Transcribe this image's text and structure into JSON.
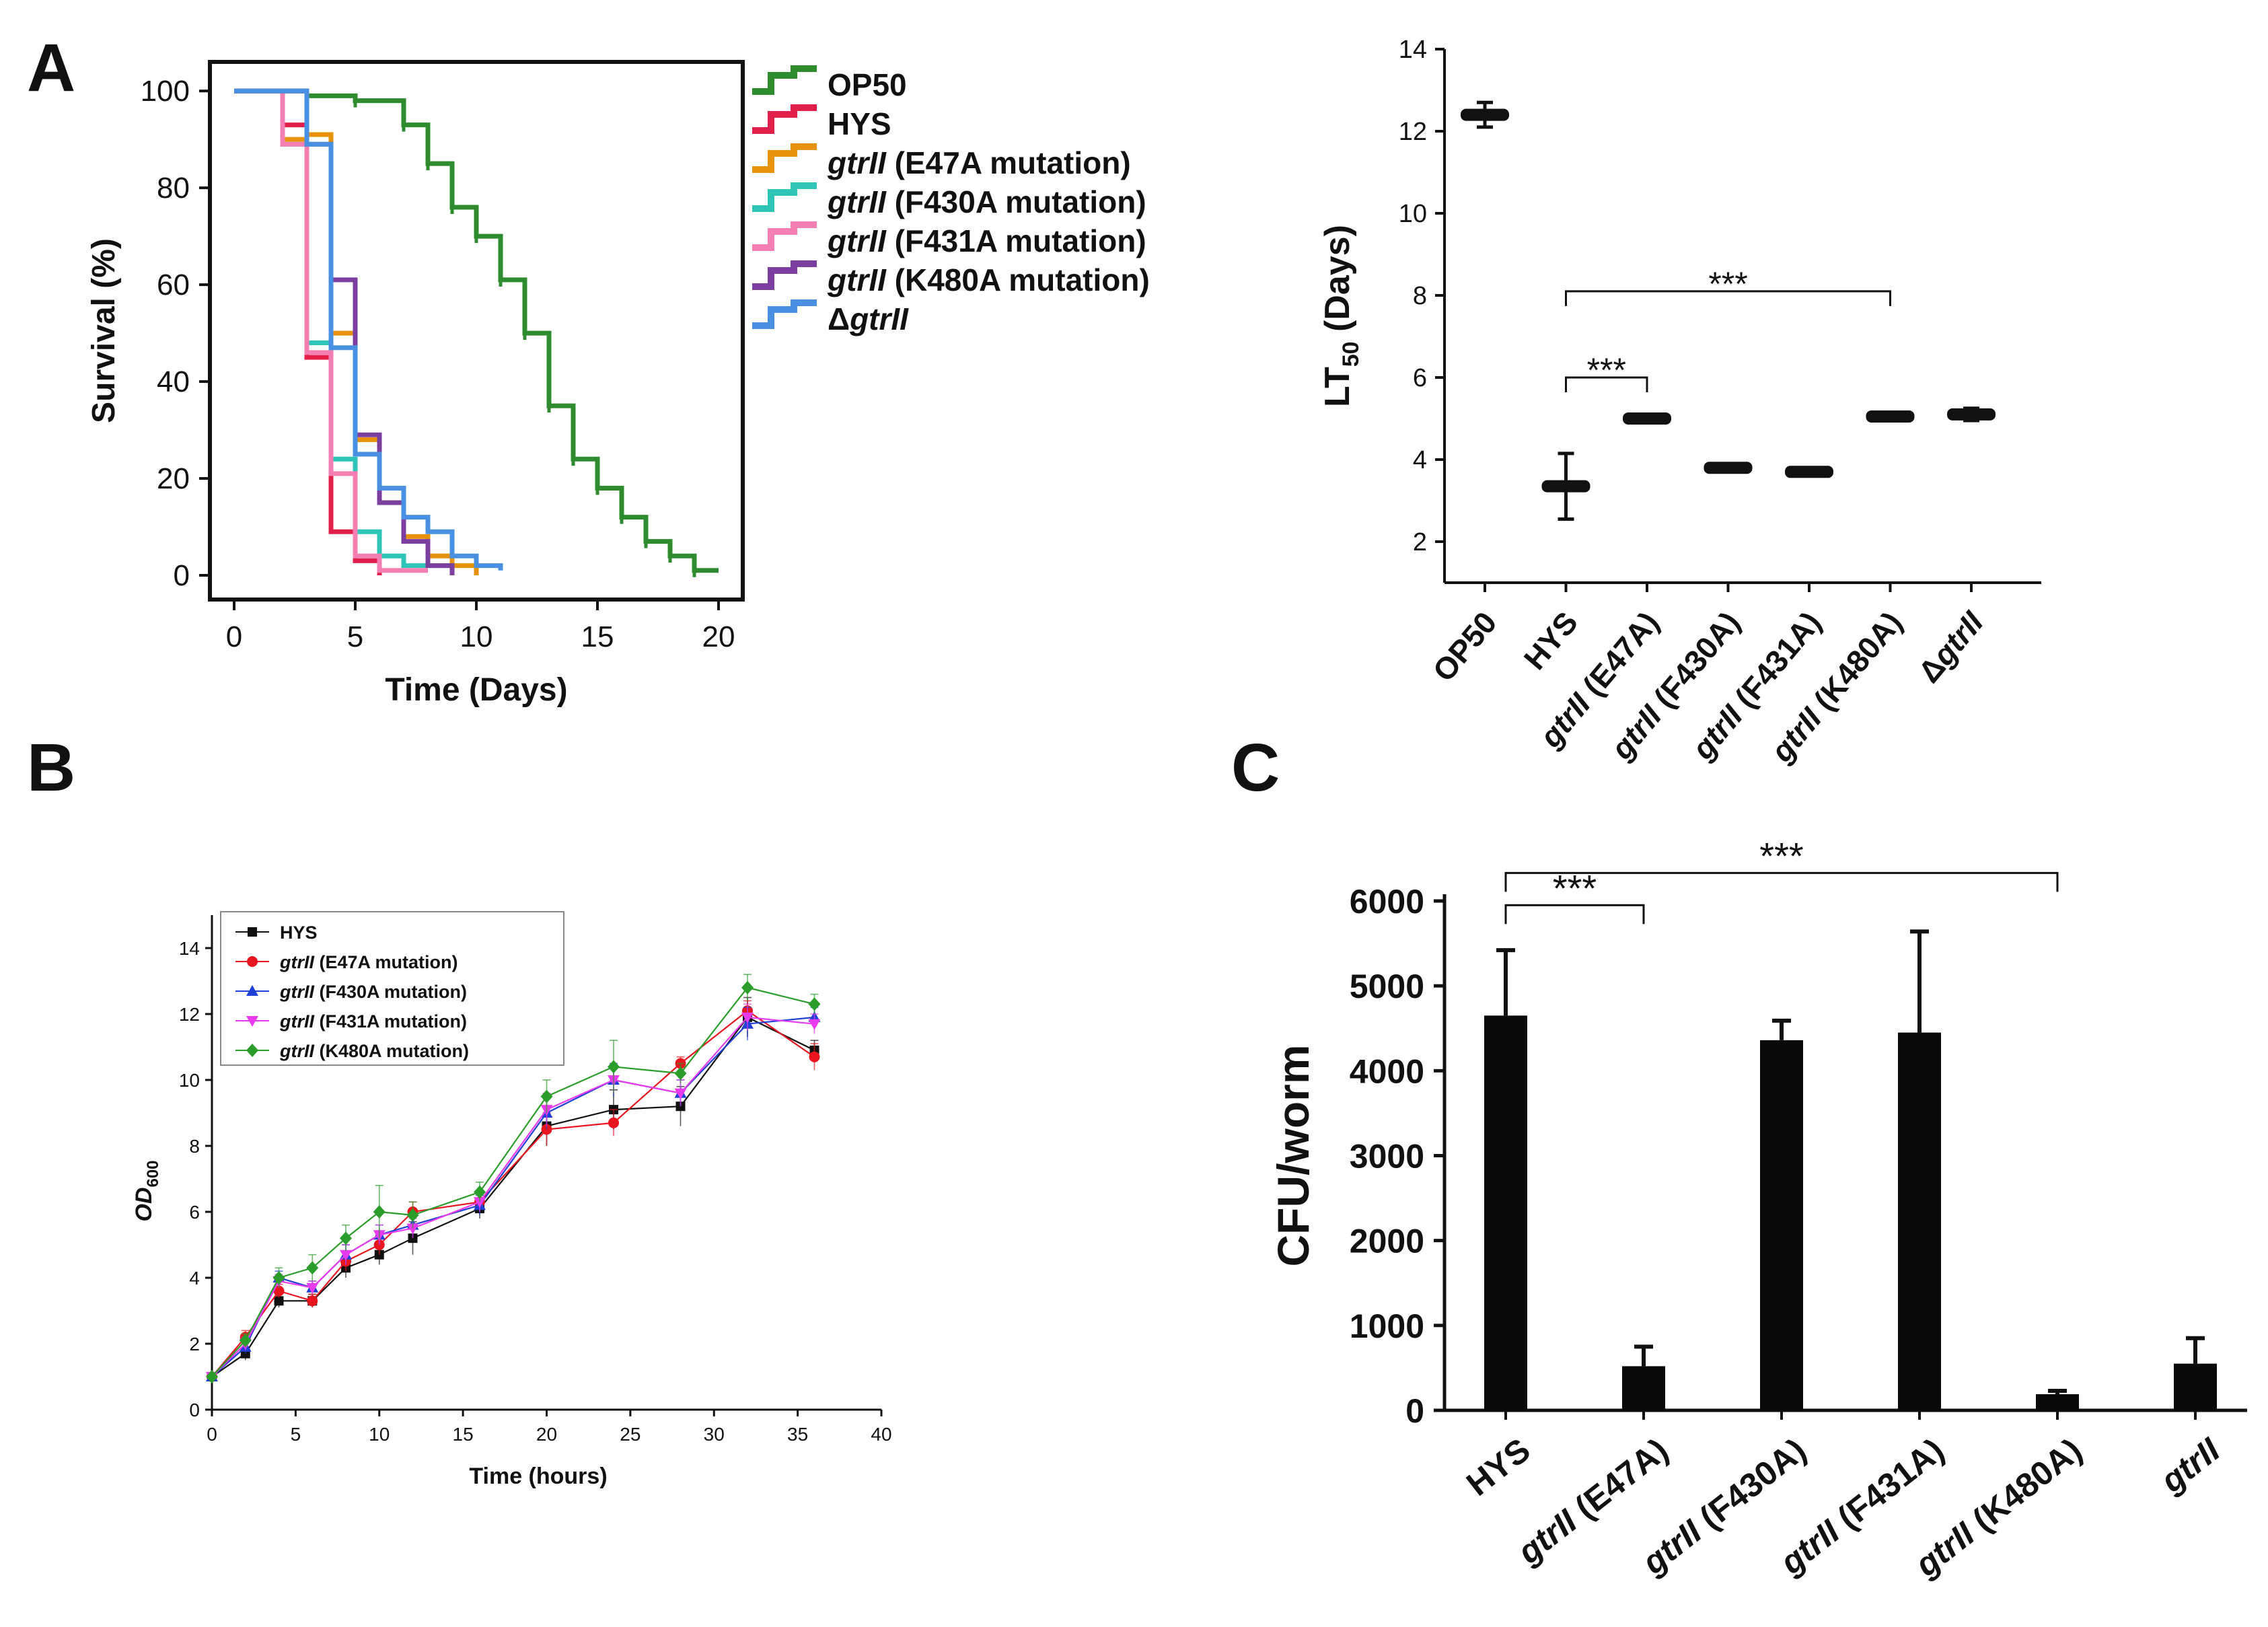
{
  "panels": {
    "a": "A",
    "b": "B",
    "c": "C"
  },
  "chart_data": [
    {
      "id": "survival",
      "type": "line",
      "xlabel": "Time (Days)",
      "ylabel": "Survival (%)",
      "xlim": [
        -1,
        21
      ],
      "ylim": [
        -5,
        106
      ],
      "xticks": [
        0,
        5,
        10,
        15,
        20
      ],
      "yticks": [
        0,
        20,
        40,
        60,
        80,
        100
      ],
      "series": [
        {
          "name": "OP50",
          "gene": "",
          "tail": "",
          "color": "#2e8b2e",
          "x": [
            0,
            3,
            5,
            7,
            8,
            9,
            10,
            11,
            12,
            13,
            14,
            15,
            16,
            17,
            18,
            19,
            20
          ],
          "y": [
            100,
            99,
            98,
            93,
            85,
            76,
            70,
            61,
            50,
            35,
            24,
            18,
            12,
            7,
            4,
            1,
            1
          ]
        },
        {
          "name": "HYS",
          "gene": "",
          "tail": "",
          "color": "#e0204a",
          "x": [
            0,
            2,
            3,
            4,
            5,
            6
          ],
          "y": [
            100,
            93,
            45,
            9,
            3,
            0
          ]
        },
        {
          "name": "",
          "gene": "gtrII",
          "tail": " (E47A mutation)",
          "color": "#e8920c",
          "x": [
            0,
            2,
            3,
            4,
            5,
            6,
            7,
            8,
            9,
            10
          ],
          "y": [
            100,
            90,
            91,
            50,
            28,
            15,
            8,
            4,
            2,
            0
          ]
        },
        {
          "name": "",
          "gene": "gtrII",
          "tail": " (F430A mutation)",
          "color": "#2ec4b6",
          "x": [
            0,
            2,
            3,
            4,
            5,
            6,
            7,
            8,
            9
          ],
          "y": [
            100,
            89,
            48,
            24,
            9,
            4,
            2,
            2,
            1
          ]
        },
        {
          "name": "",
          "gene": "gtrII",
          "tail": " (F431A mutation)",
          "color": "#f57fb2",
          "x": [
            0,
            2,
            3,
            4,
            5,
            6,
            7,
            8
          ],
          "y": [
            100,
            89,
            46,
            21,
            4,
            1,
            1,
            1
          ]
        },
        {
          "name": "",
          "gene": "gtrII",
          "tail": " (K480A mutation)",
          "color": "#7b3fa0",
          "x": [
            0,
            3,
            4,
            5,
            6,
            7,
            8,
            9
          ],
          "y": [
            100,
            89,
            61,
            29,
            15,
            7,
            2,
            0
          ]
        },
        {
          "name": "Δ",
          "gene": "gtrII",
          "tail": "",
          "color": "#4a90e2",
          "x": [
            0,
            3,
            4,
            5,
            6,
            7,
            8,
            9,
            10,
            11
          ],
          "y": [
            100,
            89,
            47,
            25,
            18,
            12,
            9,
            4,
            2,
            1
          ]
        }
      ]
    },
    {
      "id": "lt50",
      "type": "scatter",
      "ylabel_main": "LT",
      "ylabel_sub": "50",
      "ylabel_tail": " (Days)",
      "ylim": [
        1,
        14
      ],
      "yticks": [
        2,
        4,
        6,
        8,
        10,
        12,
        14
      ],
      "categories": [
        {
          "pre": "OP50",
          "gene": "",
          "tail": "",
          "value": 12.4,
          "err": 0.3
        },
        {
          "pre": "HYS",
          "gene": "",
          "tail": "",
          "value": 3.35,
          "err": 0.8
        },
        {
          "pre": "",
          "gene": "gtrII",
          "tail": " (E47A)",
          "value": 5.0,
          "err": 0.1
        },
        {
          "pre": "",
          "gene": "gtrII",
          "tail": " (F430A)",
          "value": 3.8,
          "err": 0.08
        },
        {
          "pre": "",
          "gene": "gtrII",
          "tail": " (F431A)",
          "value": 3.7,
          "err": 0.08
        },
        {
          "pre": "",
          "gene": "gtrII",
          "tail": " (K480A)",
          "value": 5.05,
          "err": 0.1
        },
        {
          "pre": "Δ",
          "gene": "gtrII",
          "tail": "",
          "value": 5.1,
          "err": 0.15
        }
      ],
      "annotations": [
        {
          "from": 1,
          "to": 2,
          "y": 6.0,
          "label": "***"
        },
        {
          "from": 1,
          "to": 5,
          "y": 8.1,
          "label": "***"
        }
      ]
    },
    {
      "id": "growth",
      "type": "line",
      "xlabel": "Time (hours)",
      "ylabel_main": "OD",
      "ylabel_sub": "600",
      "xlim": [
        0,
        40
      ],
      "ylim": [
        0,
        15
      ],
      "xticks": [
        0,
        5,
        10,
        15,
        20,
        25,
        30,
        35,
        40
      ],
      "yticks": [
        0,
        2,
        4,
        6,
        8,
        10,
        12,
        14
      ],
      "x": [
        0,
        2,
        4,
        6,
        8,
        10,
        12,
        16,
        20,
        24,
        28,
        32,
        36
      ],
      "series": [
        {
          "name": "HYS",
          "gene": "",
          "tail": "",
          "color": "#111111",
          "marker": "square",
          "y": [
            1.0,
            1.7,
            3.3,
            3.3,
            4.3,
            4.7,
            5.2,
            6.1,
            8.6,
            9.1,
            9.2,
            11.9,
            10.9
          ],
          "err": [
            0,
            0.2,
            0.2,
            0.2,
            0.3,
            0.3,
            0.5,
            0.3,
            0.6,
            0.6,
            0.6,
            0.6,
            0.3
          ]
        },
        {
          "name": "",
          "gene": "gtrII",
          "tail": " (E47A mutation)",
          "color": "#e8141e",
          "marker": "circle",
          "y": [
            1.0,
            2.2,
            3.6,
            3.3,
            4.5,
            5.0,
            6.0,
            6.3,
            8.5,
            8.7,
            10.5,
            12.1,
            10.7
          ],
          "err": [
            0,
            0.2,
            0.2,
            0.2,
            0.3,
            0.3,
            0.3,
            0.3,
            0.5,
            0.4,
            0.2,
            0.3,
            0.4
          ]
        },
        {
          "name": "",
          "gene": "gtrII",
          "tail": " (F430A mutation)",
          "color": "#1f3fd6",
          "marker": "triangle-up",
          "y": [
            1.0,
            1.9,
            4.0,
            3.7,
            4.7,
            5.3,
            5.6,
            6.2,
            9.0,
            10.0,
            9.6,
            11.7,
            11.9
          ],
          "err": [
            0,
            0.2,
            0.2,
            0.2,
            0.3,
            0.3,
            0.3,
            0.3,
            0.5,
            0.5,
            0.4,
            0.5,
            0.3
          ]
        },
        {
          "name": "",
          "gene": "gtrII",
          "tail": " (F431A mutation)",
          "color": "#e83bf0",
          "marker": "triangle-down",
          "y": [
            1.0,
            2.0,
            3.9,
            3.7,
            4.7,
            5.3,
            5.5,
            6.3,
            9.1,
            10.0,
            9.6,
            11.9,
            11.7
          ],
          "err": [
            0,
            0.2,
            0.2,
            0.2,
            0.3,
            0.3,
            0.3,
            0.3,
            0.5,
            0.4,
            0.4,
            0.4,
            0.3
          ]
        },
        {
          "name": "",
          "gene": "gtrII",
          "tail": " (K480A mutation)",
          "color": "#2a9d2a",
          "marker": "diamond",
          "y": [
            1.0,
            2.1,
            4.0,
            4.3,
            5.2,
            6.0,
            5.9,
            6.6,
            9.5,
            10.4,
            10.2,
            12.8,
            12.3
          ],
          "err": [
            0,
            0.2,
            0.3,
            0.4,
            0.4,
            0.8,
            0.4,
            0.3,
            0.5,
            0.8,
            0.3,
            0.4,
            0.3
          ]
        }
      ]
    },
    {
      "id": "cfu",
      "type": "bar",
      "ylabel": "CFU/worm",
      "ylim": [
        0,
        6000
      ],
      "yticks": [
        0,
        1000,
        2000,
        3000,
        4000,
        5000,
        6000
      ],
      "categories": [
        {
          "pre": "HYS",
          "gene": "",
          "tail": "",
          "value": 4650,
          "err": 770
        },
        {
          "pre": "",
          "gene": "gtrII",
          "tail": " (E47A)",
          "value": 520,
          "err": 230
        },
        {
          "pre": "",
          "gene": "gtrII",
          "tail": " (F430A)",
          "value": 4360,
          "err": 230
        },
        {
          "pre": "",
          "gene": "gtrII",
          "tail": " (F431A)",
          "value": 4450,
          "err": 1190
        },
        {
          "pre": "",
          "gene": "gtrII",
          "tail": " (K480A)",
          "value": 190,
          "err": 40
        },
        {
          "pre": "",
          "gene": "gtrII",
          "tail": "",
          "value": 550,
          "err": 300
        }
      ],
      "annotations": [
        {
          "from": 0,
          "to": 1,
          "y": 5950,
          "label": "***"
        },
        {
          "from": 0,
          "to": 4,
          "y": 6330,
          "label": "***"
        }
      ]
    }
  ]
}
